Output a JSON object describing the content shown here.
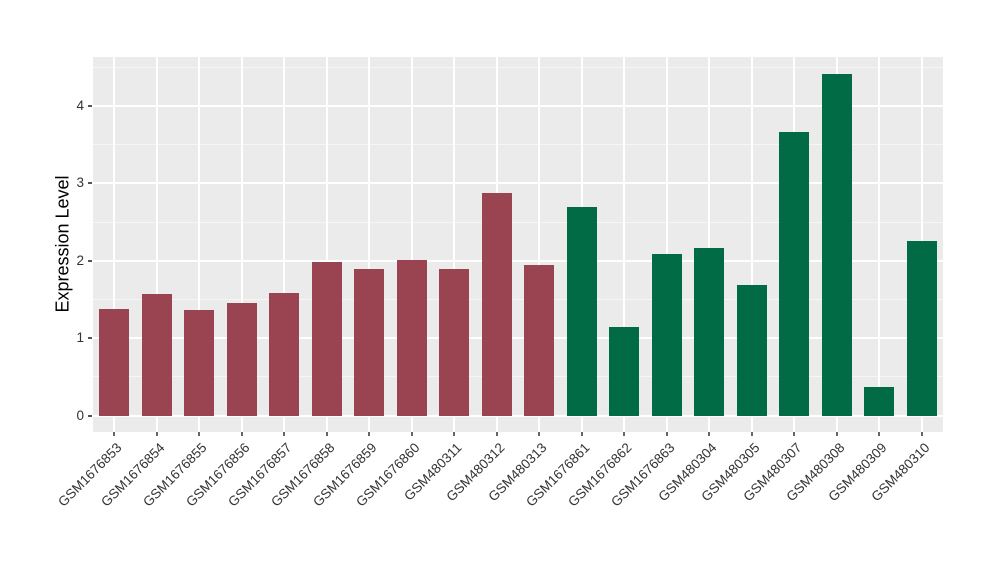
{
  "chart_data": {
    "type": "bar",
    "title": "",
    "xlabel": "",
    "ylabel": "Expression Level",
    "categories": [
      "GSM1676853",
      "GSM1676854",
      "GSM1676855",
      "GSM1676856",
      "GSM1676857",
      "GSM1676858",
      "GSM1676859",
      "GSM1676860",
      "GSM480311",
      "GSM480312",
      "GSM480313",
      "GSM1676861",
      "GSM1676862",
      "GSM1676863",
      "GSM480304",
      "GSM480305",
      "GSM480307",
      "GSM480308",
      "GSM480309",
      "GSM480310"
    ],
    "values": [
      1.38,
      1.57,
      1.37,
      1.46,
      1.58,
      1.98,
      1.89,
      2.01,
      1.9,
      2.87,
      1.94,
      2.7,
      1.15,
      2.09,
      2.16,
      1.69,
      3.66,
      4.41,
      0.37,
      2.25
    ],
    "groups": [
      "group1",
      "group1",
      "group1",
      "group1",
      "group1",
      "group1",
      "group1",
      "group1",
      "group1",
      "group1",
      "group1",
      "group2",
      "group2",
      "group2",
      "group2",
      "group2",
      "group2",
      "group2",
      "group2",
      "group2"
    ],
    "group_colors": {
      "group1": "#9A4351",
      "group2": "#006B45"
    },
    "yticks": [
      0,
      1,
      2,
      3,
      4
    ],
    "ytick_labels": [
      "0",
      "1",
      "2",
      "3",
      "4"
    ],
    "ylim": [
      -0.21,
      4.63
    ],
    "grid": "major-and-minor",
    "legend": "none",
    "panel_background": "#EBEBEB",
    "grid_color": "#FFFFFF",
    "bar_relative_width": 0.71
  }
}
